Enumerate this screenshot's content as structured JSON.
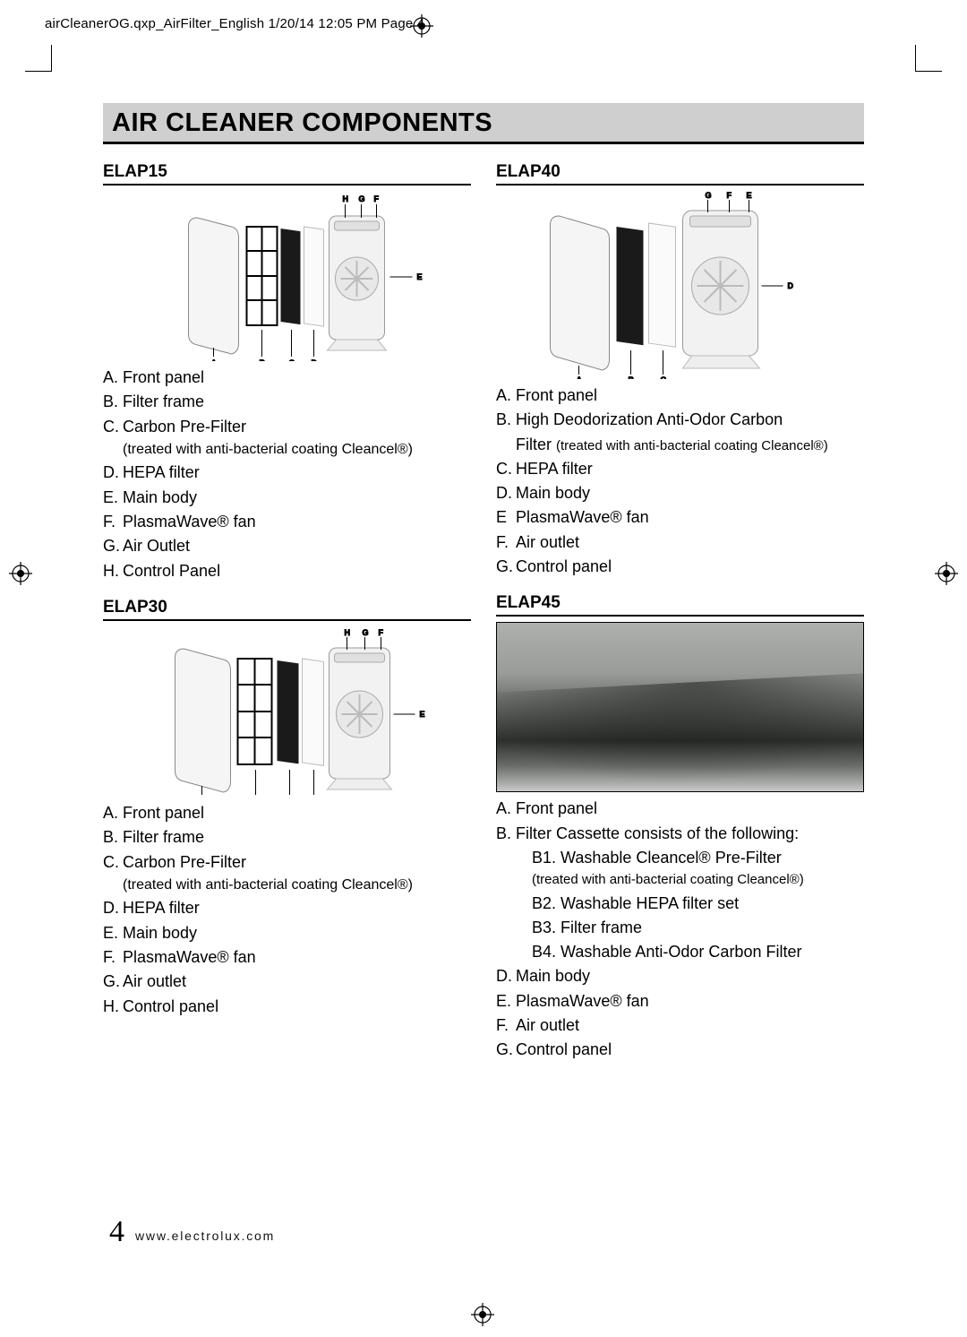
{
  "meta_header": "airCleanerOG.qxp_AirFilter_English  1/20/14  12:05 PM  Page 4",
  "title": "AIR CLEANER COMPONENTS",
  "page_number": "4",
  "footer_url": "www.electrolux.com",
  "models": {
    "elap15": {
      "heading": "ELAP15",
      "labels": [
        "A",
        "B",
        "C",
        "D",
        "E",
        "F",
        "G",
        "H"
      ],
      "items": [
        {
          "l": "A.",
          "t": "Front panel"
        },
        {
          "l": "B.",
          "t": "Filter frame"
        },
        {
          "l": "C.",
          "t": "Carbon Pre-Filter"
        },
        {
          "sub": "(treated with anti-bacterial coating Cleancel®)"
        },
        {
          "l": "D.",
          "t": "HEPA filter"
        },
        {
          "l": "E.",
          "t": "Main body"
        },
        {
          "l": "F.",
          "t": "PlasmaWave® fan"
        },
        {
          "l": "G.",
          "t": "Air Outlet"
        },
        {
          "l": "H.",
          "t": "Control Panel"
        }
      ]
    },
    "elap30": {
      "heading": "ELAP30",
      "labels": [
        "A",
        "B",
        "C",
        "D",
        "E",
        "F",
        "G",
        "H"
      ],
      "items": [
        {
          "l": "A.",
          "t": "Front panel"
        },
        {
          "l": "B.",
          "t": "Filter frame"
        },
        {
          "l": "C.",
          "t": "Carbon Pre-Filter"
        },
        {
          "sub": "(treated with anti-bacterial coating Cleancel®)"
        },
        {
          "l": "D.",
          "t": "HEPA filter"
        },
        {
          "l": "E.",
          "t": "Main body"
        },
        {
          "l": "F.",
          "t": "PlasmaWave® fan"
        },
        {
          "l": "G.",
          "t": "Air outlet"
        },
        {
          "l": "H.",
          "t": "Control panel"
        }
      ]
    },
    "elap40": {
      "heading": "ELAP40",
      "labels": [
        "A",
        "B",
        "C",
        "D",
        "E",
        "F",
        "G"
      ],
      "items": [
        {
          "l": "A.",
          "t": "Front panel"
        },
        {
          "l": "B.",
          "t": "High Deodorization Anti-Odor Carbon"
        },
        {
          "cont": "Filter ",
          "sub_inline": "(treated with anti-bacterial coating Cleancel®)"
        },
        {
          "l": "C.",
          "t": "HEPA filter"
        },
        {
          "l": "D.",
          "t": "Main body"
        },
        {
          "l": "E",
          "t": "PlasmaWave® fan"
        },
        {
          "l": "F.",
          "t": "Air outlet"
        },
        {
          "l": "G.",
          "t": "Control panel"
        }
      ]
    },
    "elap45": {
      "heading": "ELAP45",
      "items": [
        {
          "l": "A.",
          "t": "Front panel"
        },
        {
          "l": "B.",
          "t": "Filter Cassette consists of the following:"
        },
        {
          "s": "B1. Washable Cleancel® Pre-Filter"
        },
        {
          "sub2": "(treated with anti-bacterial coating Cleancel®)"
        },
        {
          "s": "B2. Washable HEPA filter set"
        },
        {
          "s": "B3. Filter frame"
        },
        {
          "s": "B4. Washable Anti-Odor Carbon Filter"
        },
        {
          "l": "D.",
          "t": "Main body"
        },
        {
          "l": "E.",
          "t": "PlasmaWave® fan"
        },
        {
          "l": "F.",
          "t": "Air outlet"
        },
        {
          "l": "G.",
          "t": "Control panel"
        }
      ]
    }
  },
  "colors": {
    "title_bg": "#cfcfcf",
    "rule": "#000000",
    "text": "#000000"
  },
  "typography": {
    "title_fontsize": 29,
    "heading_fontsize": 19,
    "body_fontsize": 18,
    "sub_fontsize": 16,
    "pagenum_fontsize": 34
  }
}
